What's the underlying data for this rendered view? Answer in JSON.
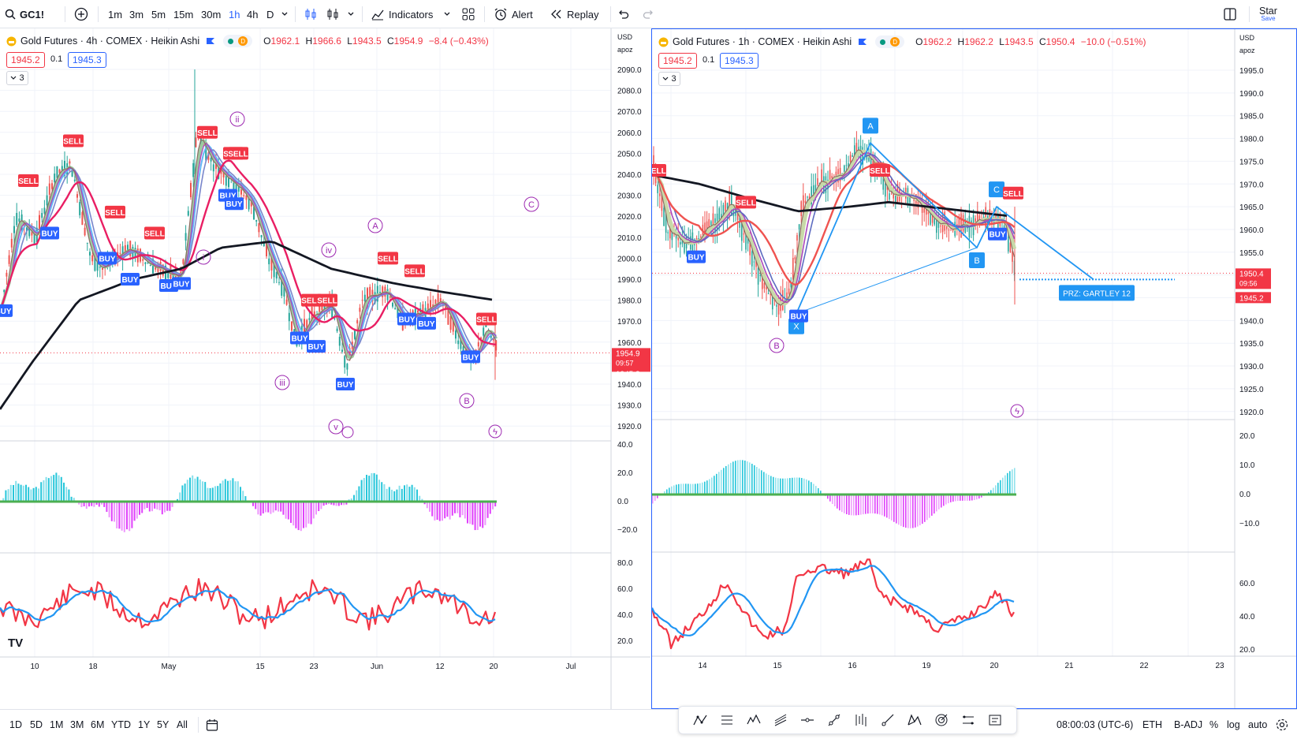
{
  "toolbar": {
    "symbol": "GC1!",
    "intervals": [
      "1m",
      "3m",
      "5m",
      "15m",
      "30m",
      "1h",
      "4h",
      "D"
    ],
    "active_interval": "1h",
    "indicators_label": "Indicators",
    "alert_label": "Alert",
    "replay_label": "Replay",
    "star_label": "Star",
    "save_label": "Save"
  },
  "left_chart": {
    "title": "Gold Futures · 4h · COMEX · Heikin Ashi",
    "ohlc": {
      "o": "1962.1",
      "h": "1966.6",
      "l": "1943.5",
      "c": "1954.9",
      "chg": "−8.4 (−0.43%)"
    },
    "bid": "1945.2",
    "spread": "0.1",
    "ask": "1945.3",
    "collapse": "3",
    "currency": "USD",
    "scale_mode": "apoz",
    "price_ticks": [
      "2090.0",
      "2080.0",
      "2070.0",
      "2060.0",
      "2050.0",
      "2040.0",
      "2030.0",
      "2020.0",
      "2010.0",
      "2000.0",
      "1990.0",
      "1980.0",
      "1970.0",
      "1960.0",
      "1950.0",
      "1940.0",
      "1930.0",
      "1920.0"
    ],
    "last_price": "1954.9",
    "countdown": "09:57",
    "bid_tag": "1945.2",
    "macd_ticks": [
      "40.0",
      "20.0",
      "0.0",
      "−20.0"
    ],
    "rsi_ticks": [
      "80.0",
      "60.0",
      "40.0",
      "20.0"
    ],
    "time_ticks": [
      "10",
      "18",
      "May",
      "15",
      "23",
      "Jun",
      "12",
      "20",
      "Jul"
    ],
    "wave_labels": [
      "ii",
      "i",
      "iv",
      "iii",
      "v",
      "A",
      "B",
      "C"
    ],
    "signals": [
      "SELL",
      "SELL",
      "SELL",
      "SELL",
      "SELL",
      "SELL",
      "SELL",
      "SELL",
      "SELL",
      "SELL",
      "SELL",
      "SELL",
      "BUY",
      "BUY",
      "BUY",
      "BUY",
      "BUY",
      "BUY",
      "BUY",
      "BUY",
      "BUY",
      "BUY",
      "BUY",
      "BUY",
      "BUY"
    ],
    "logo": "TV"
  },
  "right_chart": {
    "title": "Gold Futures · 1h · COMEX · Heikin Ashi",
    "ohlc": {
      "o": "1962.2",
      "h": "1962.2",
      "l": "1943.5",
      "c": "1950.4",
      "chg": "−10.0 (−0.51%)"
    },
    "bid": "1945.2",
    "spread": "0.1",
    "ask": "1945.3",
    "collapse": "3",
    "currency": "USD",
    "scale_mode": "apoz",
    "price_ticks": [
      "1995.0",
      "1990.0",
      "1985.0",
      "1980.0",
      "1975.0",
      "1970.0",
      "1965.0",
      "1960.0",
      "1955.0",
      "1950.0",
      "1945.0",
      "1940.0",
      "1935.0",
      "1930.0",
      "1925.0",
      "1920.0"
    ],
    "last_price": "1950.4",
    "countdown": "09:56",
    "bid_tag": "1945.2",
    "macd_ticks": [
      "20.0",
      "10.0",
      "0.0",
      "−10.0"
    ],
    "rsi_ticks": [
      "60.0",
      "40.0",
      "20.0"
    ],
    "time_ticks": [
      "14",
      "15",
      "16",
      "19",
      "20",
      "21",
      "22",
      "23"
    ],
    "pattern_points": [
      "X",
      "A",
      "B",
      "C"
    ],
    "prz_label": "PRZ: GARTLEY 12",
    "wave_label": "B",
    "signals": [
      "SELL",
      "SELL",
      "SELL",
      "SELL",
      "BUY",
      "BUY",
      "BUY"
    ]
  },
  "bottom": {
    "ranges": [
      "1D",
      "5D",
      "1M",
      "3M",
      "6M",
      "YTD",
      "1Y",
      "5Y",
      "All"
    ],
    "clock": "08:00:03 (UTC-6)",
    "session": "ETH",
    "adj": "B-ADJ",
    "pct": "%",
    "log": "log",
    "auto": "auto"
  },
  "colors": {
    "up": "#089981",
    "down": "#f23645",
    "blue": "#2962ff",
    "pattern": "#2196f3",
    "wave": "#9c27b0"
  }
}
